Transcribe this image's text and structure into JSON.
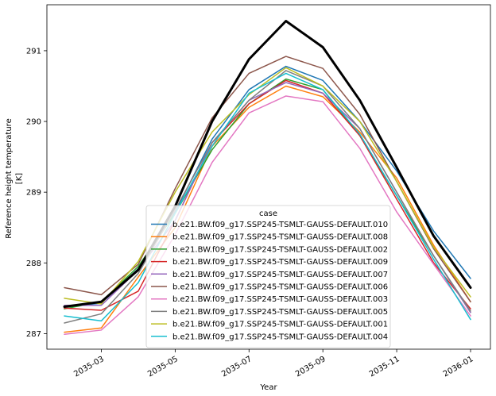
{
  "chart_data": {
    "type": "line",
    "xlabel": "Year",
    "ylabel": [
      "Reference height temperature",
      "[K]"
    ],
    "x": [
      "2035-02",
      "2035-03",
      "2035-04",
      "2035-05",
      "2035-06",
      "2035-07",
      "2035-08",
      "2035-09",
      "2035-10",
      "2035-11",
      "2035-12",
      "2036-01"
    ],
    "x_ticks": [
      "2035-03",
      "2035-05",
      "2035-07",
      "2035-09",
      "2035-11",
      "2036-01"
    ],
    "y_ticks": [
      287,
      288,
      289,
      290,
      291
    ],
    "ylim": [
      286.78,
      291.65
    ],
    "legend": {
      "title": "case",
      "position": "lower-center"
    },
    "mean_series": {
      "color": "#000000",
      "values": [
        287.38,
        287.45,
        287.9,
        288.8,
        290.0,
        290.88,
        291.42,
        291.05,
        290.3,
        289.35,
        288.38,
        287.65
      ]
    },
    "series": [
      {
        "name": "b.e21.BW.f09_g17.SSP245-TSMLT-GAUSS-DEFAULT.010",
        "color": "#1f77b4",
        "values": [
          287.38,
          287.43,
          287.92,
          288.72,
          289.75,
          290.45,
          290.78,
          290.58,
          290.0,
          289.3,
          288.45,
          287.78
        ]
      },
      {
        "name": "b.e21.BW.f09_g17.SSP245-TSMLT-GAUSS-DEFAULT.008",
        "color": "#ff7f0e",
        "values": [
          287.02,
          287.08,
          287.8,
          288.5,
          289.65,
          290.2,
          290.5,
          290.35,
          289.85,
          289.2,
          288.25,
          287.45
        ]
      },
      {
        "name": "b.e21.BW.f09_g17.SSP245-TSMLT-GAUSS-DEFAULT.002",
        "color": "#2ca02c",
        "values": [
          287.35,
          287.45,
          287.95,
          288.7,
          289.6,
          290.25,
          290.6,
          290.45,
          289.8,
          288.95,
          288.1,
          287.3
        ]
      },
      {
        "name": "b.e21.BW.f09_g17.SSP245-TSMLT-GAUSS-DEFAULT.009",
        "color": "#d62728",
        "values": [
          287.36,
          287.33,
          287.6,
          288.6,
          289.7,
          290.25,
          290.58,
          290.4,
          289.8,
          288.9,
          288.0,
          287.35
        ]
      },
      {
        "name": "b.e21.BW.f09_g17.SSP245-TSMLT-GAUSS-DEFAULT.007",
        "color": "#9467bd",
        "values": [
          287.4,
          287.4,
          287.9,
          288.6,
          289.7,
          290.3,
          290.55,
          290.4,
          289.9,
          289.0,
          288.1,
          287.3
        ]
      },
      {
        "name": "b.e21.BW.f09_g17.SSP245-TSMLT-GAUSS-DEFAULT.006",
        "color": "#8c564b",
        "values": [
          287.65,
          287.55,
          287.98,
          289.05,
          290.05,
          290.68,
          290.92,
          290.75,
          290.1,
          289.15,
          288.2,
          287.45
        ]
      },
      {
        "name": "b.e21.BW.f09_g17.SSP245-TSMLT-GAUSS-DEFAULT.003",
        "color": "#e377c2",
        "values": [
          286.99,
          287.05,
          287.52,
          288.4,
          289.42,
          290.12,
          290.36,
          290.28,
          289.62,
          288.72,
          287.98,
          287.25
        ]
      },
      {
        "name": "b.e21.BW.f09_g17.SSP245-TSMLT-GAUSS-DEFAULT.005",
        "color": "#7f7f7f",
        "values": [
          287.15,
          287.28,
          287.85,
          288.75,
          289.7,
          290.3,
          290.72,
          290.5,
          289.9,
          289.0,
          288.1,
          287.32
        ]
      },
      {
        "name": "b.e21.BW.f09_g17.SSP245-TSMLT-GAUSS-DEFAULT.001",
        "color": "#bcbd22",
        "values": [
          287.5,
          287.42,
          288.02,
          289.0,
          289.85,
          290.38,
          290.76,
          290.5,
          290.0,
          289.15,
          288.22,
          287.52
        ]
      },
      {
        "name": "b.e21.BW.f09_g17.SSP245-TSMLT-GAUSS-DEFAULT.004",
        "color": "#17becf",
        "values": [
          287.25,
          287.18,
          287.72,
          288.7,
          289.65,
          290.4,
          290.68,
          290.45,
          289.82,
          288.95,
          288.05,
          287.2
        ]
      }
    ]
  }
}
